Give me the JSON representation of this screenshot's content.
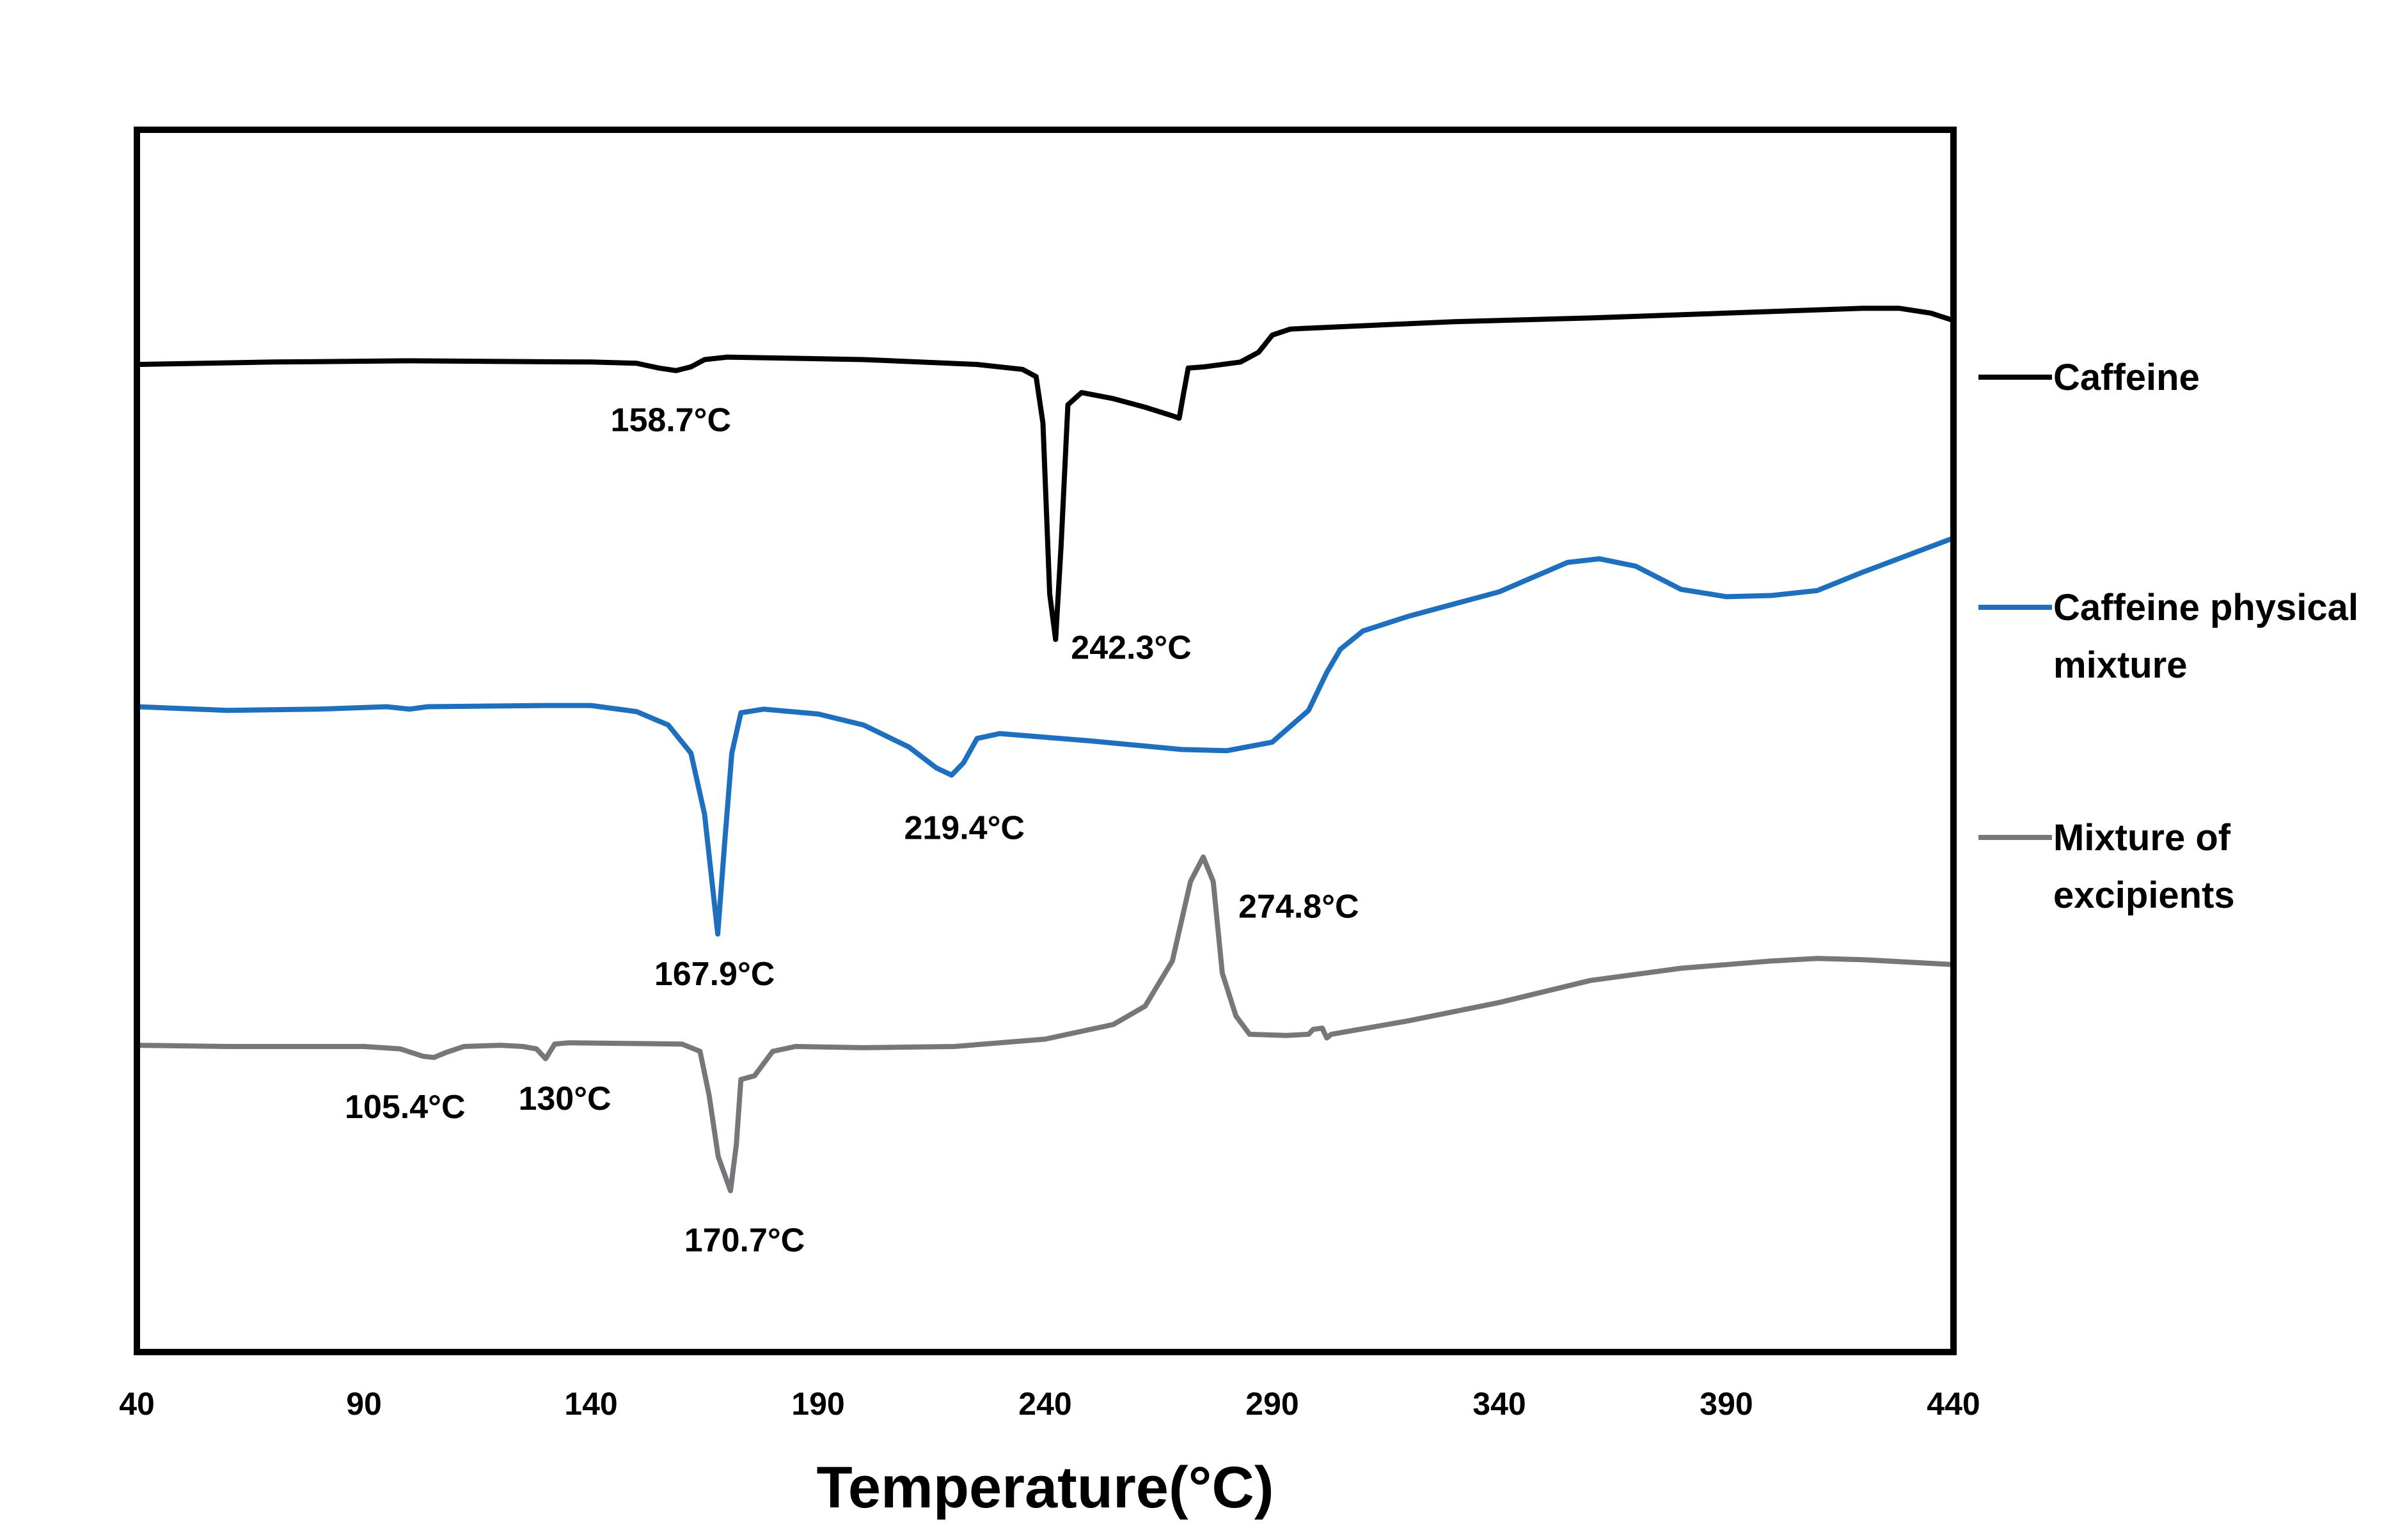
{
  "chart_data": {
    "type": "line",
    "title": "",
    "xlabel": "Temperature(°C)",
    "ylabel": "",
    "xlim": [
      40,
      440
    ],
    "ylim": [
      0,
      100
    ],
    "x_ticks": [
      40,
      90,
      140,
      190,
      240,
      290,
      340,
      390,
      440
    ],
    "x_tick_labels": [
      "40",
      "90",
      "140",
      "190",
      "240",
      "290",
      "340",
      "390",
      "440"
    ],
    "grid": false,
    "legend_position": "right",
    "y_axis_note": "relative heat flow, no tick labels shown",
    "series": [
      {
        "name": "Caffeine",
        "color": "#000000",
        "points": [
          [
            40,
            80.8
          ],
          [
            70,
            81.0
          ],
          [
            100,
            81.1
          ],
          [
            140,
            81.0
          ],
          [
            150,
            80.9
          ],
          [
            155,
            80.5
          ],
          [
            158.7,
            80.3
          ],
          [
            162,
            80.6
          ],
          [
            165,
            81.2
          ],
          [
            170,
            81.4
          ],
          [
            200,
            81.2
          ],
          [
            225,
            80.8
          ],
          [
            235,
            80.4
          ],
          [
            238,
            79.8
          ],
          [
            239.5,
            76
          ],
          [
            241,
            62
          ],
          [
            242.3,
            58.3
          ],
          [
            243.5,
            66
          ],
          [
            245,
            77.5
          ],
          [
            248,
            78.5
          ],
          [
            255,
            78.0
          ],
          [
            262,
            77.3
          ],
          [
            268,
            76.6
          ],
          [
            269.5,
            76.4
          ],
          [
            270.5,
            78.5
          ],
          [
            271.5,
            80.5
          ],
          [
            275,
            80.6
          ],
          [
            283,
            81.0
          ],
          [
            287,
            81.8
          ],
          [
            290,
            83.2
          ],
          [
            294,
            83.7
          ],
          [
            300,
            83.8
          ],
          [
            330,
            84.3
          ],
          [
            360,
            84.6
          ],
          [
            390,
            85.0
          ],
          [
            420,
            85.4
          ],
          [
            428,
            85.4
          ],
          [
            435,
            85.0
          ],
          [
            440,
            84.4
          ]
        ]
      },
      {
        "name": "Caffeine physical mixture",
        "color": "#1F6FBF",
        "points": [
          [
            40,
            52.8
          ],
          [
            60,
            52.5
          ],
          [
            80,
            52.6
          ],
          [
            95,
            52.8
          ],
          [
            100,
            52.6
          ],
          [
            104,
            52.8
          ],
          [
            130,
            52.9
          ],
          [
            140,
            52.9
          ],
          [
            150,
            52.4
          ],
          [
            157,
            51.3
          ],
          [
            162,
            49
          ],
          [
            165,
            44
          ],
          [
            167.9,
            34.2
          ],
          [
            169.5,
            42
          ],
          [
            171,
            49
          ],
          [
            173,
            52.3
          ],
          [
            178,
            52.6
          ],
          [
            190,
            52.2
          ],
          [
            200,
            51.3
          ],
          [
            210,
            49.5
          ],
          [
            216,
            47.8
          ],
          [
            219.4,
            47.2
          ],
          [
            222,
            48.2
          ],
          [
            225,
            50.2
          ],
          [
            230,
            50.6
          ],
          [
            250,
            50.0
          ],
          [
            270,
            49.3
          ],
          [
            280,
            49.2
          ],
          [
            290,
            49.9
          ],
          [
            298,
            52.5
          ],
          [
            302,
            55.6
          ],
          [
            305,
            57.5
          ],
          [
            310,
            59
          ],
          [
            320,
            60.2
          ],
          [
            340,
            62.2
          ],
          [
            355,
            64.6
          ],
          [
            362,
            64.9
          ],
          [
            370,
            64.3
          ],
          [
            380,
            62.4
          ],
          [
            390,
            61.8
          ],
          [
            400,
            61.9
          ],
          [
            410,
            62.3
          ],
          [
            420,
            63.8
          ],
          [
            430,
            65.2
          ],
          [
            440,
            66.6
          ]
        ]
      },
      {
        "name": "Mixture of excipients",
        "color": "#77777B",
        "points": [
          [
            40,
            25.1
          ],
          [
            60,
            25.0
          ],
          [
            90,
            25.0
          ],
          [
            98,
            24.8
          ],
          [
            103,
            24.2
          ],
          [
            105.4,
            24.1
          ],
          [
            108,
            24.5
          ],
          [
            112,
            25.0
          ],
          [
            120,
            25.1
          ],
          [
            125,
            25.0
          ],
          [
            128,
            24.8
          ],
          [
            130,
            24.0
          ],
          [
            132,
            25.2
          ],
          [
            135,
            25.3
          ],
          [
            160,
            25.2
          ],
          [
            164,
            24.6
          ],
          [
            166,
            21
          ],
          [
            168,
            16
          ],
          [
            170.7,
            13.2
          ],
          [
            172,
            17
          ],
          [
            173,
            22.3
          ],
          [
            176,
            22.6
          ],
          [
            180,
            24.6
          ],
          [
            185,
            25.0
          ],
          [
            200,
            24.9
          ],
          [
            220,
            25.0
          ],
          [
            240,
            25.6
          ],
          [
            255,
            26.8
          ],
          [
            262,
            28.3
          ],
          [
            268,
            32
          ],
          [
            272,
            38.5
          ],
          [
            274.8,
            40.5
          ],
          [
            277,
            38.5
          ],
          [
            279,
            31
          ],
          [
            282,
            27.5
          ],
          [
            285,
            26.0
          ],
          [
            293,
            25.9
          ],
          [
            298,
            26.0
          ],
          [
            299,
            26.4
          ],
          [
            301,
            26.5
          ],
          [
            302,
            25.7
          ],
          [
            303,
            26.0
          ],
          [
            320,
            27.1
          ],
          [
            340,
            28.6
          ],
          [
            360,
            30.4
          ],
          [
            380,
            31.4
          ],
          [
            400,
            32.0
          ],
          [
            410,
            32.2
          ],
          [
            420,
            32.1
          ],
          [
            440,
            31.7
          ]
        ]
      }
    ],
    "annotations": [
      {
        "text": "158.7°C",
        "x": 158.7,
        "y": 80.3,
        "series": "Caffeine"
      },
      {
        "text": "242.3°C",
        "x": 242.3,
        "y": 58.3,
        "series": "Caffeine"
      },
      {
        "text": "219.4°C",
        "x": 219.4,
        "y": 47.2,
        "series": "Caffeine physical mixture"
      },
      {
        "text": "167.9°C",
        "x": 167.9,
        "y": 34.2,
        "series": "Caffeine physical mixture"
      },
      {
        "text": "274.8°C",
        "x": 274.8,
        "y": 40.5,
        "series": "Mixture of excipients"
      },
      {
        "text": "105.4°C",
        "x": 105.4,
        "y": 24.1,
        "series": "Mixture of excipients"
      },
      {
        "text": "130°C",
        "x": 130,
        "y": 24.0,
        "series": "Mixture of excipients"
      },
      {
        "text": "170.7°C",
        "x": 170.7,
        "y": 13.2,
        "series": "Mixture of excipients"
      }
    ],
    "legend": [
      {
        "lines": [
          "Caffeine"
        ],
        "color": "#000000"
      },
      {
        "lines": [
          "Caffeine physical",
          "mixture"
        ],
        "color": "#1F6FBF"
      },
      {
        "lines": [
          "Mixture of",
          "excipients"
        ],
        "color": "#77777B"
      }
    ]
  }
}
